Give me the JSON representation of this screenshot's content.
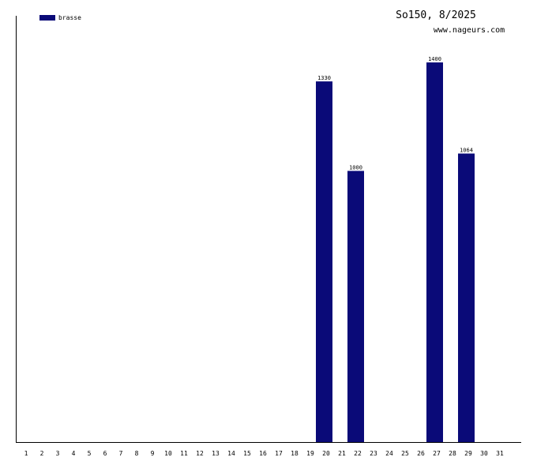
{
  "chart_data": {
    "type": "bar",
    "title": "So150, 8/2025",
    "subtitle": "www.nageurs.com",
    "categories": [
      "1",
      "2",
      "3",
      "4",
      "5",
      "6",
      "7",
      "8",
      "9",
      "10",
      "11",
      "12",
      "13",
      "14",
      "15",
      "16",
      "17",
      "18",
      "19",
      "20",
      "21",
      "22",
      "23",
      "24",
      "25",
      "26",
      "27",
      "28",
      "29",
      "30",
      "31"
    ],
    "series": [
      {
        "name": "brasse",
        "color": "#0a0a78",
        "values": [
          null,
          null,
          null,
          null,
          null,
          null,
          null,
          null,
          null,
          null,
          null,
          null,
          null,
          null,
          null,
          null,
          null,
          null,
          null,
          1330,
          null,
          1000,
          null,
          null,
          null,
          null,
          1400,
          null,
          1064,
          null,
          null
        ]
      }
    ],
    "ylim": [
      0,
      1572
    ]
  }
}
